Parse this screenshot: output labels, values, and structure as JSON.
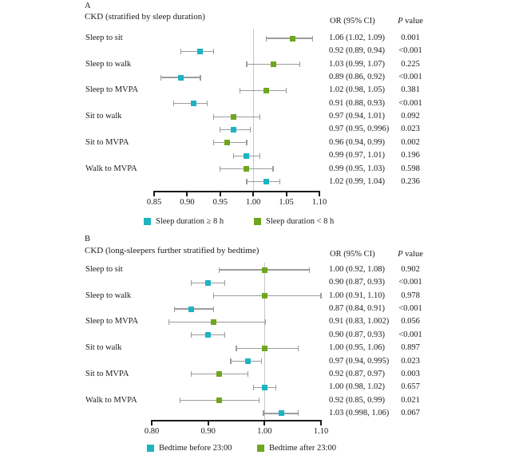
{
  "colors": {
    "teal": "#1db3c1",
    "green": "#6ea71e",
    "ci_line": "#9c9c9c",
    "axis": "#1b1b1b",
    "ref_line": "#c6c6c6",
    "text": "#1b1b1b"
  },
  "chart_data": [
    {
      "type": "forest",
      "letter": "A",
      "title": "CKD (stratified by sleep duration)",
      "or_header": "OR (95% CI)",
      "p_header_italic": "P",
      "p_header_rest": " value",
      "axis": {
        "min": 0.85,
        "max": 1.1,
        "ref_line": 1.0,
        "ticks": [
          0.85,
          0.9,
          0.95,
          1.0,
          1.05,
          1.1
        ],
        "tick_labels": [
          "0.85",
          "0.90",
          "0.95",
          "1.00",
          "1.05",
          "1.10"
        ]
      },
      "groups": [
        "Sleep to sit",
        "Sleep to walk",
        "Sleep to MVPA",
        "Sit to walk",
        "Sit to MVPA",
        "Walk to MVPA"
      ],
      "rows": [
        {
          "group": "Sleep to sit",
          "series": "green",
          "or": 1.06,
          "lo": 1.02,
          "hi": 1.09,
          "or_text": "1.06 (1.02, 1.09)",
          "p_text": "0.001"
        },
        {
          "series": "teal",
          "or": 0.92,
          "lo": 0.89,
          "hi": 0.94,
          "or_text": "0.92 (0.89, 0.94)",
          "p_text": "<0.001"
        },
        {
          "group": "Sleep to walk",
          "series": "green",
          "or": 1.03,
          "lo": 0.99,
          "hi": 1.07,
          "or_text": "1.03 (0.99, 1.07)",
          "p_text": "0.225"
        },
        {
          "series": "teal",
          "or": 0.89,
          "lo": 0.86,
          "hi": 0.92,
          "or_text": "0.89 (0.86, 0.92)",
          "p_text": "<0.001"
        },
        {
          "group": "Sleep to MVPA",
          "series": "green",
          "or": 1.02,
          "lo": 0.98,
          "hi": 1.05,
          "or_text": "1.02 (0.98, 1.05)",
          "p_text": "0.381"
        },
        {
          "series": "teal",
          "or": 0.91,
          "lo": 0.88,
          "hi": 0.93,
          "or_text": "0.91 (0.88, 0.93)",
          "p_text": "<0.001"
        },
        {
          "group": "Sit to walk",
          "series": "green",
          "or": 0.97,
          "lo": 0.94,
          "hi": 1.01,
          "or_text": "0.97 (0.94, 1.01)",
          "p_text": "0.092"
        },
        {
          "series": "teal",
          "or": 0.97,
          "lo": 0.95,
          "hi": 0.996,
          "or_text": "0.97 (0.95, 0.996)",
          "p_text": "0.023"
        },
        {
          "group": "Sit to MVPA",
          "series": "green",
          "or": 0.96,
          "lo": 0.94,
          "hi": 0.99,
          "or_text": "0.96 (0.94, 0.99)",
          "p_text": "0.002"
        },
        {
          "series": "teal",
          "or": 0.99,
          "lo": 0.97,
          "hi": 1.01,
          "or_text": "0.99 (0.97, 1.01)",
          "p_text": "0.196"
        },
        {
          "group": "Walk to MVPA",
          "series": "green",
          "or": 0.99,
          "lo": 0.95,
          "hi": 1.03,
          "or_text": "0.99 (0.95, 1.03)",
          "p_text": "0.598"
        },
        {
          "series": "teal",
          "or": 1.02,
          "lo": 0.99,
          "hi": 1.04,
          "or_text": "1.02 (0.99, 1.04)",
          "p_text": "0.236"
        }
      ],
      "legend": [
        {
          "series": "teal",
          "label": "Sleep duration ≥ 8 h"
        },
        {
          "series": "green",
          "label": "Sleep duration < 8 h"
        }
      ]
    },
    {
      "type": "forest",
      "letter": "B",
      "title": "CKD (long-sleepers further stratified by bedtime)",
      "or_header": "OR (95% CI)",
      "p_header_italic": "P",
      "p_header_rest": " value",
      "axis": {
        "min": 0.8,
        "max": 1.1,
        "ref_line": 1.0,
        "ticks": [
          0.8,
          0.9,
          1.0,
          1.1
        ],
        "tick_labels": [
          "0.80",
          "0.90",
          "1.00",
          "1.10"
        ]
      },
      "groups": [
        "Sleep to sit",
        "Sleep to walk",
        "Sleep to MVPA",
        "Sit to walk",
        "Sit to MVPA",
        "Walk to MVPA"
      ],
      "rows": [
        {
          "group": "Sleep to sit",
          "series": "green",
          "or": 1.0,
          "lo": 0.92,
          "hi": 1.08,
          "or_text": "1.00 (0.92, 1.08)",
          "p_text": "0.902"
        },
        {
          "series": "teal",
          "or": 0.9,
          "lo": 0.87,
          "hi": 0.93,
          "or_text": "0.90 (0.87, 0.93)",
          "p_text": "<0.001"
        },
        {
          "group": "Sleep to walk",
          "series": "green",
          "or": 1.0,
          "lo": 0.91,
          "hi": 1.1,
          "or_text": "1.00 (0.91, 1.10)",
          "p_text": "0.978"
        },
        {
          "series": "teal",
          "or": 0.87,
          "lo": 0.84,
          "hi": 0.91,
          "or_text": "0.87 (0.84, 0.91)",
          "p_text": "<0.001"
        },
        {
          "group": "Sleep to MVPA",
          "series": "green",
          "or": 0.91,
          "lo": 0.83,
          "hi": 1.002,
          "or_text": "0.91 (0.83, 1.002)",
          "p_text": "0.056"
        },
        {
          "series": "teal",
          "or": 0.9,
          "lo": 0.87,
          "hi": 0.93,
          "or_text": "0.90 (0.87, 0.93)",
          "p_text": "<0.001"
        },
        {
          "group": "Sit to walk",
          "series": "green",
          "or": 1.0,
          "lo": 0.95,
          "hi": 1.06,
          "or_text": "1.00 (0.95, 1.06)",
          "p_text": "0.897"
        },
        {
          "series": "teal",
          "or": 0.97,
          "lo": 0.94,
          "hi": 0.995,
          "or_text": "0.97 (0.94, 0.995)",
          "p_text": "0.023"
        },
        {
          "group": "Sit to MVPA",
          "series": "green",
          "or": 0.92,
          "lo": 0.87,
          "hi": 0.97,
          "or_text": "0.92 (0.87, 0.97)",
          "p_text": "0.003"
        },
        {
          "series": "teal",
          "or": 1.0,
          "lo": 0.98,
          "hi": 1.02,
          "or_text": "1.00 (0.98, 1.02)",
          "p_text": "0.657"
        },
        {
          "group": "Walk to MVPA",
          "series": "green",
          "or": 0.92,
          "lo": 0.85,
          "hi": 0.99,
          "or_text": "0.92 (0.85, 0.99)",
          "p_text": "0.021"
        },
        {
          "series": "teal",
          "or": 1.03,
          "lo": 0.998,
          "hi": 1.06,
          "or_text": "1.03 (0.998, 1.06)",
          "p_text": "0.067"
        }
      ],
      "legend": [
        {
          "series": "teal",
          "label": "Bedtime before 23:00"
        },
        {
          "series": "green",
          "label": "Bedtime after 23:00"
        }
      ]
    }
  ]
}
